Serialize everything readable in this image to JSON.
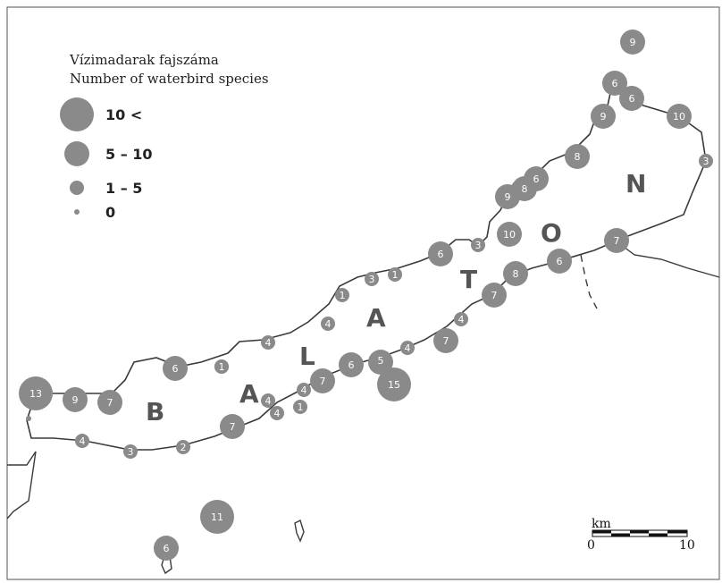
{
  "legend": {
    "title_hu": "Vízimadarak fajszáma",
    "title_en": "Number of waterbird species",
    "classes": [
      {
        "label": "10 <"
      },
      {
        "label": "5 – 10"
      },
      {
        "label": "1 – 5"
      },
      {
        "label": "0"
      }
    ]
  },
  "lake_letters": [
    "B",
    "A",
    "L",
    "A",
    "T",
    "O",
    "N"
  ],
  "scale_bar": {
    "unit": "km",
    "start_label": "0",
    "end_label": "10"
  },
  "colors": {
    "symbol_fill": "#8a8a8a",
    "shoreline": "#3a3a3a",
    "label_text": "#ffffff",
    "frame": "#555555"
  },
  "sites": [
    {
      "count": "13"
    },
    {
      "count": "9"
    },
    {
      "count": "7"
    },
    {
      "count": "6"
    },
    {
      "count": "1"
    },
    {
      "count": "4"
    },
    {
      "count": "4"
    },
    {
      "count": "1"
    },
    {
      "count": "3"
    },
    {
      "count": "1"
    },
    {
      "count": "6"
    },
    {
      "count": "3"
    },
    {
      "count": "10"
    },
    {
      "count": "9"
    },
    {
      "count": "8"
    },
    {
      "count": "6"
    },
    {
      "count": "8"
    },
    {
      "count": "9"
    },
    {
      "count": "6"
    },
    {
      "count": "6"
    },
    {
      "count": "9"
    },
    {
      "count": "10"
    },
    {
      "count": "3"
    },
    {
      "count": "7"
    },
    {
      "count": "6"
    },
    {
      "count": "8"
    },
    {
      "count": "7"
    },
    {
      "count": "7"
    },
    {
      "count": "4"
    },
    {
      "count": "4"
    },
    {
      "count": "7"
    },
    {
      "count": "4"
    },
    {
      "count": "5"
    },
    {
      "count": "15"
    },
    {
      "count": "6"
    },
    {
      "count": "7"
    },
    {
      "count": "4"
    },
    {
      "count": "1"
    },
    {
      "count": "4"
    },
    {
      "count": "7"
    },
    {
      "count": "1"
    },
    {
      "count": "2"
    },
    {
      "count": "3"
    },
    {
      "count": "4"
    },
    {
      "count": "11"
    },
    {
      "count": "6"
    },
    {
      "count": "0"
    }
  ]
}
